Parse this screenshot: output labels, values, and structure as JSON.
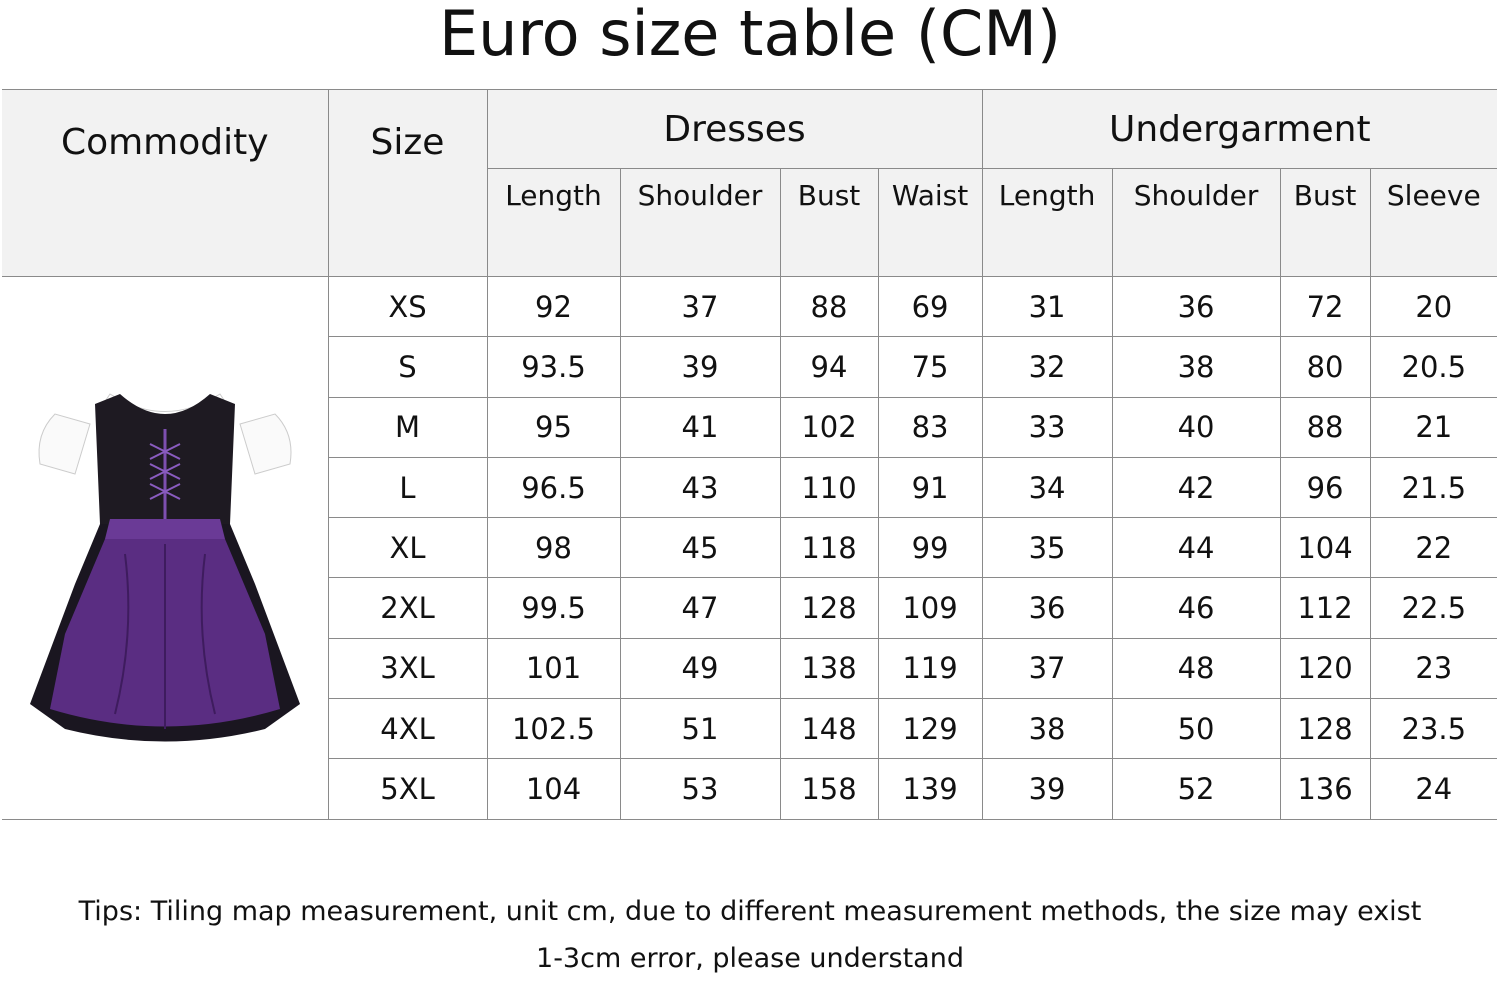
{
  "title": "Euro size table (CM)",
  "header": {
    "commodity": "Commodity",
    "size": "Size",
    "dresses": {
      "label": "Dresses",
      "columns": [
        "Length",
        "Shoulder",
        "Bust",
        "Waist"
      ]
    },
    "undergarment": {
      "label": "Undergarment",
      "columns": [
        "Length",
        "Shoulder",
        "Bust",
        "Sleeve"
      ]
    }
  },
  "rows": [
    {
      "size": "XS",
      "values": [
        "92",
        "37",
        "88",
        "69",
        "31",
        "36",
        "72",
        "20"
      ]
    },
    {
      "size": "S",
      "values": [
        "93.5",
        "39",
        "94",
        "75",
        "32",
        "38",
        "80",
        "20.5"
      ]
    },
    {
      "size": "M",
      "values": [
        "95",
        "41",
        "102",
        "83",
        "33",
        "40",
        "88",
        "21"
      ]
    },
    {
      "size": "L",
      "values": [
        "96.5",
        "43",
        "110",
        "91",
        "34",
        "42",
        "96",
        "21.5"
      ]
    },
    {
      "size": "XL",
      "values": [
        "98",
        "45",
        "118",
        "99",
        "35",
        "44",
        "104",
        "22"
      ]
    },
    {
      "size": "2XL",
      "values": [
        "99.5",
        "47",
        "128",
        "109",
        "36",
        "46",
        "112",
        "22.5"
      ]
    },
    {
      "size": "3XL",
      "values": [
        "101",
        "49",
        "138",
        "119",
        "37",
        "48",
        "120",
        "23"
      ]
    },
    {
      "size": "4XL",
      "values": [
        "102.5",
        "51",
        "148",
        "129",
        "38",
        "50",
        "128",
        "23.5"
      ]
    },
    {
      "size": "5XL",
      "values": [
        "104",
        "53",
        "158",
        "139",
        "39",
        "52",
        "136",
        "24"
      ]
    }
  ],
  "product_image": "purple-dirndl-dress",
  "colors": {
    "header_bg": "#f2f2f2",
    "border": "#8a8a8a",
    "dress_purple": "#5a2d82"
  },
  "tips": [
    "Tips: Tiling map measurement, unit cm, due to different measurement methods, the size may exist",
    "1-3cm error, please understand"
  ]
}
